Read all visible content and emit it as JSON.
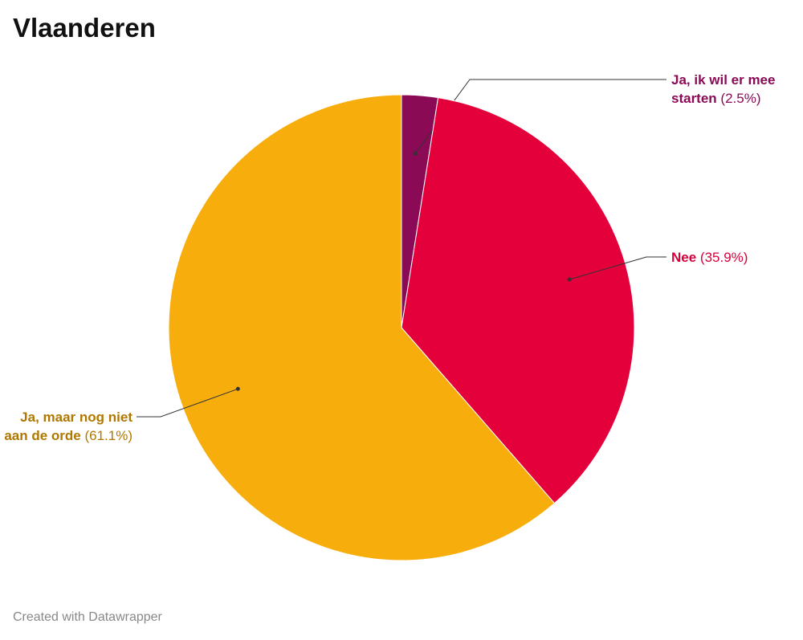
{
  "chart_data": {
    "type": "pie",
    "title": "Vlaanderen",
    "categories": [
      "Ja, ik wil er mee starten",
      "Nee",
      "Ja, maar nog niet aan de orde"
    ],
    "values": [
      2.5,
      35.9,
      61.1
    ],
    "value_labels": [
      "(2.5%)",
      "(35.9%)",
      "(61.1%)"
    ],
    "colors": [
      "#8a0a56",
      "#e4003b",
      "#f7ae0d"
    ],
    "label_colors": [
      "#8a0a56",
      "#d6003a",
      "#b07800"
    ],
    "credit": "Created with Datawrapper"
  }
}
